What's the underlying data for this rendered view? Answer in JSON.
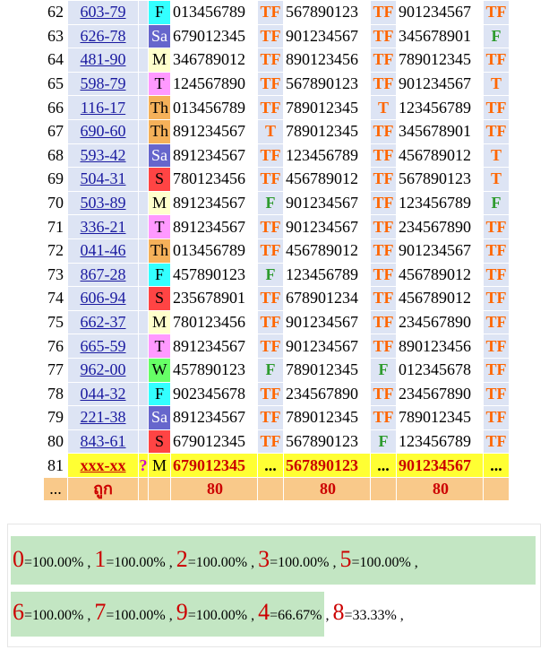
{
  "rows": [
    {
      "no": "62",
      "code": "603-79",
      "day": "F",
      "d1": "013456789",
      "r1": "TF",
      "d2": "567890123",
      "r2": "TF",
      "d3": "901234567",
      "r3": "TF"
    },
    {
      "no": "63",
      "code": "626-78",
      "day": "Sa",
      "d1": "679012345",
      "r1": "TF",
      "d2": "901234567",
      "r2": "TF",
      "d3": "345678901",
      "r3": "F"
    },
    {
      "no": "64",
      "code": "481-90",
      "day": "M",
      "d1": "346789012",
      "r1": "TF",
      "d2": "890123456",
      "r2": "TF",
      "d3": "789012345",
      "r3": "TF"
    },
    {
      "no": "65",
      "code": "598-79",
      "day": "T",
      "d1": "124567890",
      "r1": "TF",
      "d2": "567890123",
      "r2": "TF",
      "d3": "901234567",
      "r3": "T"
    },
    {
      "no": "66",
      "code": "116-17",
      "day": "Th",
      "d1": "013456789",
      "r1": "TF",
      "d2": "789012345",
      "r2": "T",
      "d3": "123456789",
      "r3": "TF"
    },
    {
      "no": "67",
      "code": "690-60",
      "day": "Th",
      "d1": "891234567",
      "r1": "T",
      "d2": "789012345",
      "r2": "TF",
      "d3": "345678901",
      "r3": "TF"
    },
    {
      "no": "68",
      "code": "593-42",
      "day": "Sa",
      "d1": "891234567",
      "r1": "TF",
      "d2": "123456789",
      "r2": "TF",
      "d3": "456789012",
      "r3": "T"
    },
    {
      "no": "69",
      "code": "504-31",
      "day": "S",
      "d1": "780123456",
      "r1": "TF",
      "d2": "456789012",
      "r2": "TF",
      "d3": "567890123",
      "r3": "T"
    },
    {
      "no": "70",
      "code": "503-89",
      "day": "M",
      "d1": "891234567",
      "r1": "F",
      "d2": "901234567",
      "r2": "TF",
      "d3": "123456789",
      "r3": "F"
    },
    {
      "no": "71",
      "code": "336-21",
      "day": "T",
      "d1": "891234567",
      "r1": "TF",
      "d2": "901234567",
      "r2": "TF",
      "d3": "234567890",
      "r3": "TF"
    },
    {
      "no": "72",
      "code": "041-46",
      "day": "Th",
      "d1": "013456789",
      "r1": "TF",
      "d2": "456789012",
      "r2": "TF",
      "d3": "901234567",
      "r3": "TF"
    },
    {
      "no": "73",
      "code": "867-28",
      "day": "F",
      "d1": "457890123",
      "r1": "F",
      "d2": "123456789",
      "r2": "TF",
      "d3": "456789012",
      "r3": "TF"
    },
    {
      "no": "74",
      "code": "606-94",
      "day": "S",
      "d1": "235678901",
      "r1": "TF",
      "d2": "678901234",
      "r2": "TF",
      "d3": "456789012",
      "r3": "TF"
    },
    {
      "no": "75",
      "code": "662-37",
      "day": "M",
      "d1": "780123456",
      "r1": "TF",
      "d2": "901234567",
      "r2": "TF",
      "d3": "234567890",
      "r3": "TF"
    },
    {
      "no": "76",
      "code": "665-59",
      "day": "T",
      "d1": "891234567",
      "r1": "TF",
      "d2": "901234567",
      "r2": "TF",
      "d3": "890123456",
      "r3": "TF"
    },
    {
      "no": "77",
      "code": "962-00",
      "day": "W",
      "d1": "457890123",
      "r1": "F",
      "d2": "789012345",
      "r2": "F",
      "d3": "012345678",
      "r3": "TF"
    },
    {
      "no": "78",
      "code": "044-32",
      "day": "F",
      "d1": "902345678",
      "r1": "TF",
      "d2": "234567890",
      "r2": "TF",
      "d3": "234567890",
      "r3": "TF"
    },
    {
      "no": "79",
      "code": "221-38",
      "day": "Sa",
      "d1": "891234567",
      "r1": "TF",
      "d2": "789012345",
      "r2": "TF",
      "d3": "789012345",
      "r3": "TF"
    },
    {
      "no": "80",
      "code": "843-61",
      "day": "S",
      "d1": "679012345",
      "r1": "TF",
      "d2": "567890123",
      "r2": "F",
      "d3": "123456789",
      "r3": "TF"
    }
  ],
  "current": {
    "no": "81",
    "code": "xxx-xx",
    "q": "?",
    "day": "M",
    "d1": "679012345",
    "r1": "...",
    "d2": "567890123",
    "r2": "...",
    "d3": "901234567",
    "r3": "..."
  },
  "summary": {
    "no": "...",
    "label": "ถูก",
    "v1": "80",
    "v2": "80",
    "v3": "80"
  },
  "stats": [
    {
      "digit": "0",
      "pct": "=100.00%"
    },
    {
      "digit": "1",
      "pct": "=100.00%"
    },
    {
      "digit": "2",
      "pct": "=100.00%"
    },
    {
      "digit": "3",
      "pct": "=100.00%"
    },
    {
      "digit": "5",
      "pct": "=100.00%"
    },
    {
      "digit": "6",
      "pct": "=100.00%"
    },
    {
      "digit": "7",
      "pct": "=100.00%"
    },
    {
      "digit": "9",
      "pct": "=100.00%"
    },
    {
      "digit": "4",
      "pct": "=66.67%"
    },
    {
      "digit": "8",
      "pct": "=33.33%"
    }
  ],
  "separator": " , ",
  "colors": {
    "green_bar": "#c3e6c3",
    "digit_red": "#cc0000",
    "tf_orange": "#ff6600",
    "f_green": "#2e9b2e"
  }
}
